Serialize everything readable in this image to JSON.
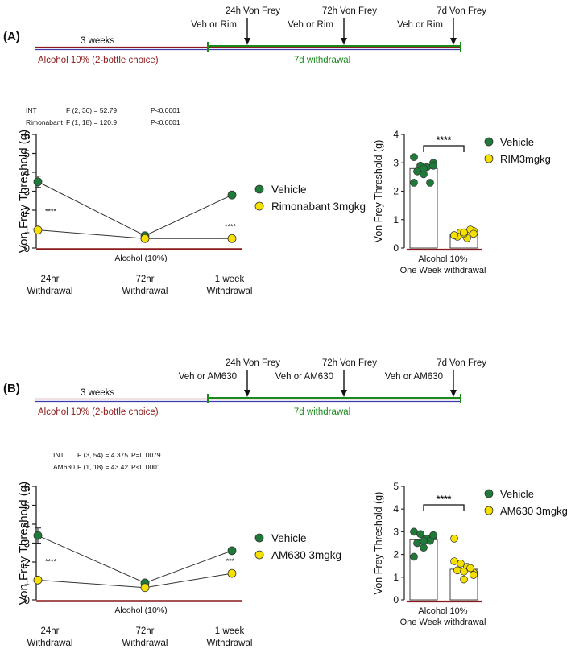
{
  "colors": {
    "vehicle": "#1f7a3a",
    "treatment": "#f5e000",
    "alcohol_line": "#8b1a1a",
    "timeline_blue": "#3a3ab0",
    "withdrawal_green": "#1a8a1a",
    "axis": "#222222"
  },
  "panels": [
    {
      "panel_label": "(A)",
      "timeline": {
        "weeks_label": "3 weeks",
        "alcohol_label": "Alcohol 10% (2-bottle choice)",
        "withdrawal_label": "7d withdrawal",
        "events": [
          {
            "time": "24h",
            "test": "Von Frey",
            "treatment": "Veh or Rim"
          },
          {
            "time": "72h",
            "test": "Von Frey",
            "treatment": "Veh or Rim"
          },
          {
            "time": "7d",
            "test": "Von Frey",
            "treatment": "Veh or Rim"
          }
        ]
      },
      "stats": [
        {
          "term": "INT",
          "f": "F (2, 36) = 52.79",
          "p": "P<0.0001"
        },
        {
          "term": "Rimonabant",
          "f": "F (1, 18) = 120.9",
          "p": "P<0.0001"
        }
      ],
      "line_chart": {
        "type": "line",
        "ylabel": "Von Frey Threshold (g)",
        "ylim": [
          0,
          6
        ],
        "yticks": [
          0,
          1,
          2,
          3,
          4,
          5,
          6
        ],
        "categories": [
          "24hr",
          "72hr",
          "1 week"
        ],
        "category_sublabel": "Withdrawal",
        "alcohol_label": "Alcohol (10%)",
        "series": [
          {
            "name": "Vehicle",
            "values": [
              3.5,
              0.65,
              2.8
            ],
            "errors": [
              0.3,
              0.08,
              0.15
            ]
          },
          {
            "name": "Rimonabant 3mgkg",
            "values": [
              0.95,
              0.5,
              0.5
            ],
            "errors": [
              0.08,
              0.05,
              0.05
            ]
          }
        ],
        "significance": [
          "****",
          "",
          "****"
        ]
      },
      "bar_chart": {
        "type": "bar",
        "ylabel": "Von Frey Threshold (g)",
        "ylim": [
          0,
          4
        ],
        "yticks": [
          0,
          1,
          2,
          3,
          4
        ],
        "xlabel_line1": "Alcohol 10%",
        "xlabel_line2": "One Week withdrawal",
        "significance": "****",
        "series": [
          {
            "name": "Vehicle",
            "mean": 2.8,
            "sem": 0.15,
            "points": [
              3.2,
              2.9,
              2.85,
              3.0,
              2.7,
              2.6,
              2.3,
              2.3,
              2.9,
              2.8
            ]
          },
          {
            "name": "RIM3mgkg",
            "mean": 0.5,
            "sem": 0.05,
            "points": [
              0.45,
              0.55,
              0.35,
              0.6,
              0.4,
              0.5,
              0.65,
              0.45,
              0.5,
              0.55
            ]
          }
        ]
      }
    },
    {
      "panel_label": "(B)",
      "timeline": {
        "weeks_label": "3 weeks",
        "alcohol_label": "Alcohol 10% (2-bottle choice)",
        "withdrawal_label": "7d withdrawal",
        "events": [
          {
            "time": "24h",
            "test": "Von Frey",
            "treatment": "Veh or AM630"
          },
          {
            "time": "72h",
            "test": "Von Frey",
            "treatment": "Veh or AM630"
          },
          {
            "time": "7d",
            "test": "Von Frey",
            "treatment": "Veh or AM630"
          }
        ]
      },
      "stats": [
        {
          "term": "INT",
          "f": "F (3, 54) = 4.375",
          "p": "P=0.0079"
        },
        {
          "term": "AM630",
          "f": "F (1, 18) = 43.42",
          "p": "P<0.0001"
        }
      ],
      "line_chart": {
        "type": "line",
        "ylabel": "Von Frey Threshold (g)",
        "ylim": [
          0,
          6
        ],
        "yticks": [
          0,
          1,
          2,
          3,
          4,
          5,
          6
        ],
        "categories": [
          "24hr",
          "72hr",
          "1 week"
        ],
        "category_sublabel": "Withdrawal",
        "alcohol_label": "Alcohol (10%)",
        "series": [
          {
            "name": "Vehicle",
            "values": [
              3.4,
              0.9,
              2.6
            ],
            "errors": [
              0.4,
              0.1,
              0.15
            ]
          },
          {
            "name": "AM630 3mgkg",
            "values": [
              1.05,
              0.65,
              1.4
            ],
            "errors": [
              0.08,
              0.05,
              0.15
            ]
          }
        ],
        "significance": [
          "****",
          "",
          "***"
        ]
      },
      "bar_chart": {
        "type": "bar",
        "ylabel": "Von Frey Threshold (g)",
        "ylim": [
          0,
          5
        ],
        "yticks": [
          0,
          1,
          2,
          3,
          4,
          5
        ],
        "xlabel_line1": "Alcohol 10%",
        "xlabel_line2": "One Week withdrawal",
        "significance": "****",
        "series": [
          {
            "name": "Vehicle",
            "mean": 2.65,
            "sem": 0.15,
            "points": [
              3.0,
              2.9,
              2.7,
              2.8,
              2.5,
              2.3,
              2.6,
              1.9,
              2.85,
              2.6
            ]
          },
          {
            "name": "AM630 3mgkg",
            "mean": 1.35,
            "sem": 0.15,
            "points": [
              2.7,
              1.6,
              1.45,
              1.2,
              1.3,
              0.9,
              1.4,
              1.7,
              1.1,
              1.25
            ]
          }
        ]
      }
    }
  ]
}
